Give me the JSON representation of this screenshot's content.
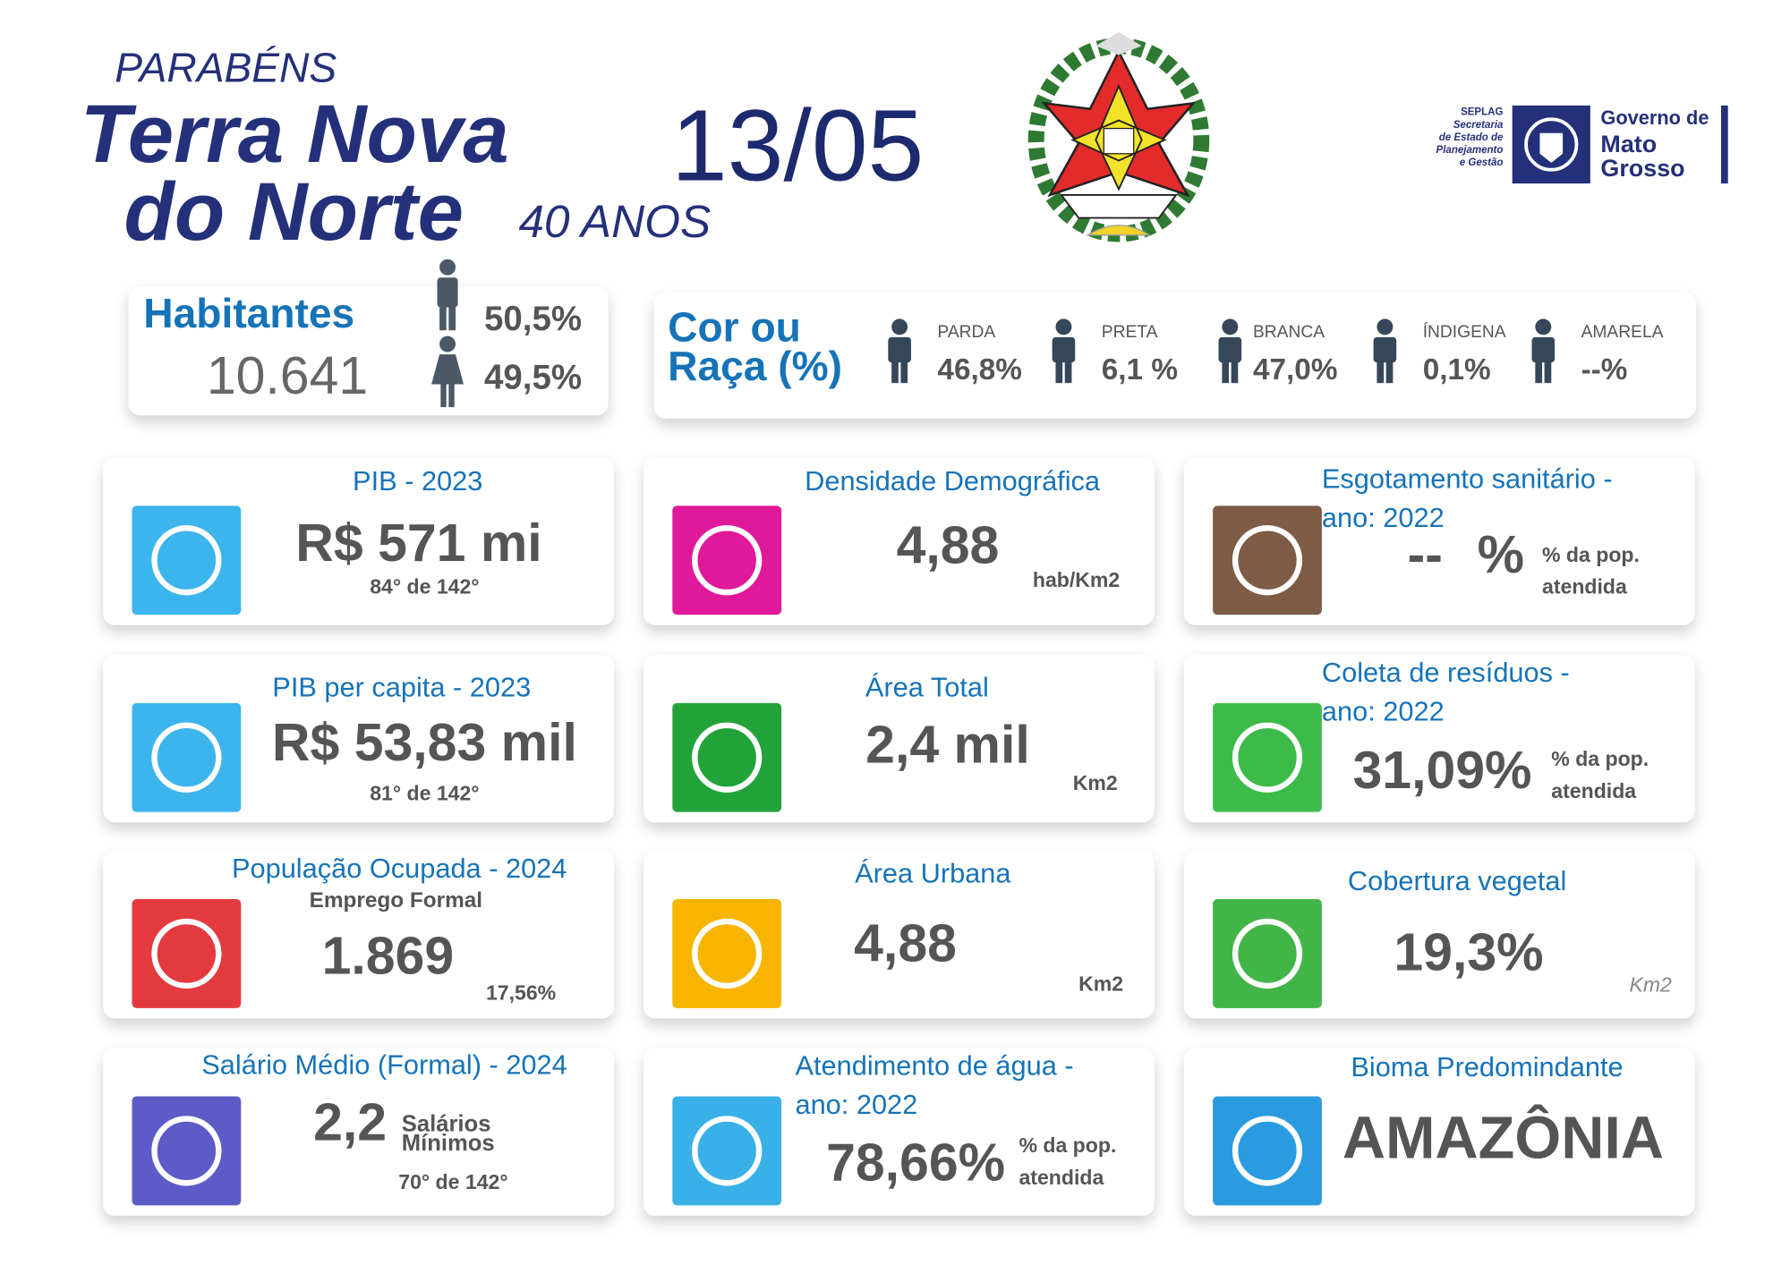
{
  "header": {
    "greeting": "PARABÉNS",
    "city": [
      "Terra Nova",
      "do Norte"
    ],
    "anniversary": "40 ANOS",
    "date": "13/05"
  },
  "logo": {
    "seplag": [
      "SEPLAG",
      "Secretaria",
      "de Estado de",
      "Planejamento",
      "e Gestão"
    ],
    "government": [
      "Governo de",
      "Mato",
      "Grosso"
    ]
  },
  "population": {
    "label": "Habitantes",
    "total": "10.641",
    "male": "50,5%",
    "female": "49,5%"
  },
  "race": {
    "title": [
      "Cor ou",
      "Raça (%)"
    ],
    "groups": [
      {
        "label": "PARDA",
        "value": "46,8%"
      },
      {
        "label": "PRETA",
        "value": "6,1 %"
      },
      {
        "label": "BRANCA",
        "value": "47,0%"
      },
      {
        "label": "ÍNDIGENA",
        "value": "0,1%"
      },
      {
        "label": "AMARELA",
        "value": "--%"
      }
    ]
  },
  "cards": [
    {
      "title": [
        "PIB - 2023"
      ],
      "value": "R$ 571 mi",
      "note": "84° de 142°",
      "color": "#3cb4ec"
    },
    {
      "title": [
        "Densidade Demográfica"
      ],
      "value": "4,88",
      "unit": [
        "hab/Km2"
      ],
      "color": "#e0189a"
    },
    {
      "title": [
        "Esgotamento sanitário -",
        "ano: 2022"
      ],
      "value": "--",
      "value_suffix": "%",
      "unit": [
        "% da pop.",
        "atendida"
      ],
      "color": "#7d5b45"
    },
    {
      "title": [
        "PIB per capita - 2023"
      ],
      "value": "R$ 53,83 mil",
      "note": "81° de 142°",
      "color": "#3cb4ec"
    },
    {
      "title": [
        "Área Total"
      ],
      "value": "2,4 mil",
      "unit": [
        "Km2"
      ],
      "color": "#22a33a"
    },
    {
      "title": [
        "Coleta de resíduos -",
        "ano: 2022"
      ],
      "value": "31,09%",
      "unit": [
        "% da pop.",
        "atendida"
      ],
      "color": "#3dbb4a"
    },
    {
      "title": [
        "População Ocupada - 2024"
      ],
      "subtitle": "Emprego Formal",
      "value": "1.869",
      "note": "17,56%",
      "color": "#e33a3f"
    },
    {
      "title": [
        "Área Urbana"
      ],
      "value": "4,88",
      "unit": [
        "Km2"
      ],
      "color": "#f7b500"
    },
    {
      "title": [
        "Cobertura vegetal"
      ],
      "value": "19,3%",
      "unit": [
        "Km2"
      ],
      "color": "#43b548"
    },
    {
      "title": [
        "Salário Médio (Formal) - 2024"
      ],
      "value": "2,2",
      "unit": [
        "Salários",
        "Mínimos"
      ],
      "note": "70° de 142°",
      "color": "#5d5bc7"
    },
    {
      "title": [
        "Atendimento de água -",
        "ano: 2022"
      ],
      "value": "78,66%",
      "unit": [
        "% da pop.",
        "atendida"
      ],
      "color": "#3ab0e8"
    },
    {
      "title": [
        "Bioma Predomindante"
      ],
      "value": "AMAZÔNIA",
      "color": "#2a9be0"
    }
  ]
}
